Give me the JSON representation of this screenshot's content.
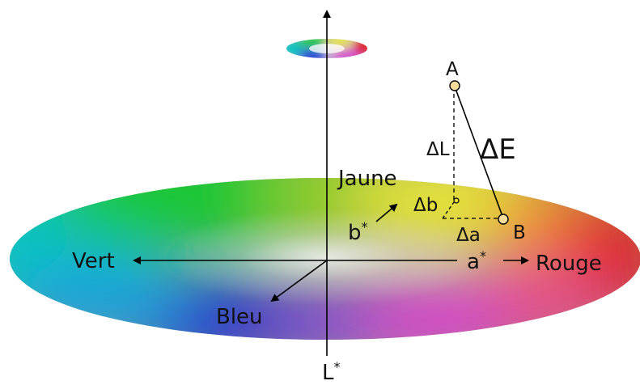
{
  "colors": {
    "plane_red": "#e02323",
    "plane_magenta": "#d83fd0",
    "plane_blue": "#1c2fd8",
    "plane_green": "#18c830",
    "plane_yellow": "#e9e634",
    "point_fill": "#f4dd9b",
    "axis": "#000000"
  },
  "axes": {
    "l_star": "L*",
    "a_star": "a*",
    "b_star": "b*"
  },
  "directions": {
    "green": "Vert",
    "red": "Rouge",
    "yellow": "Jaune",
    "blue": "Bleu"
  },
  "points": {
    "a": "A",
    "b": "B"
  },
  "differences": {
    "delta_e": "ΔE",
    "delta_l": "ΔL",
    "delta_a": "Δa",
    "delta_b": "Δb"
  }
}
